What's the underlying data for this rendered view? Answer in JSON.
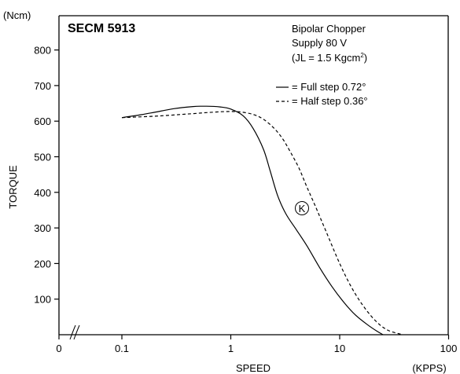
{
  "chart_data": {
    "type": "line",
    "title": "SECM 5913",
    "annotations": [
      "Bipolar Chopper",
      "Supply 80 V",
      "(JL = 1.5 Kgcm",
      "2",
      ")"
    ],
    "curve_marker": "K",
    "xlabel": "SPEED",
    "xunit": "(KPPS)",
    "ylabel": "TORQUE",
    "yunit": "(Ncm)",
    "x_scale": "log",
    "x_ticks": [
      {
        "label": "0",
        "value": null
      },
      {
        "label": "0.1",
        "value": 0.1
      },
      {
        "label": "1",
        "value": 1
      },
      {
        "label": "10",
        "value": 10
      },
      {
        "label": "100",
        "value": 100
      }
    ],
    "y_ticks": [
      100,
      200,
      300,
      400,
      500,
      600,
      700,
      800
    ],
    "xlim": [
      0.1,
      100
    ],
    "ylim": [
      0,
      900
    ],
    "axis_break": "//",
    "legend_position": "top-right",
    "series": [
      {
        "name": "= Full step 0.72°",
        "style": "solid",
        "points": [
          [
            0.1,
            610
          ],
          [
            0.15,
            618
          ],
          [
            0.2,
            625
          ],
          [
            0.3,
            635
          ],
          [
            0.45,
            641
          ],
          [
            0.6,
            642
          ],
          [
            0.8,
            640
          ],
          [
            1.0,
            634
          ],
          [
            1.3,
            615
          ],
          [
            1.6,
            580
          ],
          [
            2.0,
            520
          ],
          [
            2.3,
            460
          ],
          [
            2.7,
            390
          ],
          [
            3.2,
            340
          ],
          [
            4.0,
            295
          ],
          [
            5.0,
            250
          ],
          [
            6.5,
            190
          ],
          [
            8.5,
            135
          ],
          [
            11,
            90
          ],
          [
            14,
            55
          ],
          [
            18,
            28
          ],
          [
            22,
            10
          ],
          [
            25,
            0
          ]
        ]
      },
      {
        "name": "= Half step 0.36°",
        "style": "dashed",
        "points": [
          [
            0.1,
            610
          ],
          [
            0.2,
            614
          ],
          [
            0.4,
            620
          ],
          [
            0.6,
            624
          ],
          [
            0.9,
            627
          ],
          [
            1.2,
            626
          ],
          [
            1.6,
            619
          ],
          [
            2.0,
            605
          ],
          [
            2.5,
            580
          ],
          [
            3.0,
            550
          ],
          [
            3.5,
            515
          ],
          [
            4.2,
            470
          ],
          [
            5.0,
            415
          ],
          [
            6.0,
            360
          ],
          [
            7.5,
            290
          ],
          [
            10,
            200
          ],
          [
            13,
            130
          ],
          [
            17,
            75
          ],
          [
            22,
            35
          ],
          [
            28,
            12
          ],
          [
            38,
            0
          ]
        ]
      }
    ]
  },
  "colors": {
    "ink": "#000000",
    "background": "#ffffff"
  }
}
